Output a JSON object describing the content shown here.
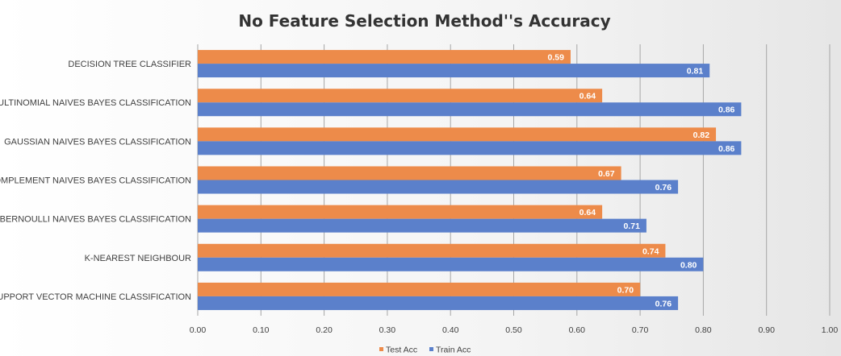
{
  "chart_data": {
    "type": "bar",
    "orientation": "horizontal",
    "title": "No Feature Selection Method''s Accuracy",
    "categories": [
      "DECISION TREE CLASSIFIER",
      "MULTINOMIAL NAIVES BAYES CLASSIFICATION",
      "GAUSSIAN NAIVES BAYES CLASSIFICATION",
      "COMPLEMENT NAIVES BAYES CLASSIFICATION",
      "BERNOULLI NAIVES BAYES CLASSIFICATION",
      "K-NEAREST NEIGHBOUR",
      "SUPPORT VECTOR MACHINE CLASSIFICATION"
    ],
    "series": [
      {
        "name": "Test Acc",
        "color": "#ed8b4a",
        "values": [
          0.59,
          0.64,
          0.82,
          0.67,
          0.64,
          0.74,
          0.7
        ],
        "labels": [
          "0.59",
          "0.64",
          "0.82",
          "0.67",
          "0.64",
          "0.74",
          "0.70"
        ]
      },
      {
        "name": "Train Acc",
        "color": "#5b80cb",
        "values": [
          0.81,
          0.86,
          0.86,
          0.76,
          0.71,
          0.8,
          0.76
        ],
        "labels": [
          "0.81",
          "0.86",
          "0.86",
          "0.76",
          "0.71",
          "0.80",
          "0.76"
        ]
      }
    ],
    "xlim": [
      0,
      1
    ],
    "x_ticks": [
      "0.00",
      "0.10",
      "0.20",
      "0.30",
      "0.40",
      "0.50",
      "0.60",
      "0.70",
      "0.80",
      "0.90",
      "1.00"
    ],
    "grid": true,
    "legend_position": "bottom"
  }
}
